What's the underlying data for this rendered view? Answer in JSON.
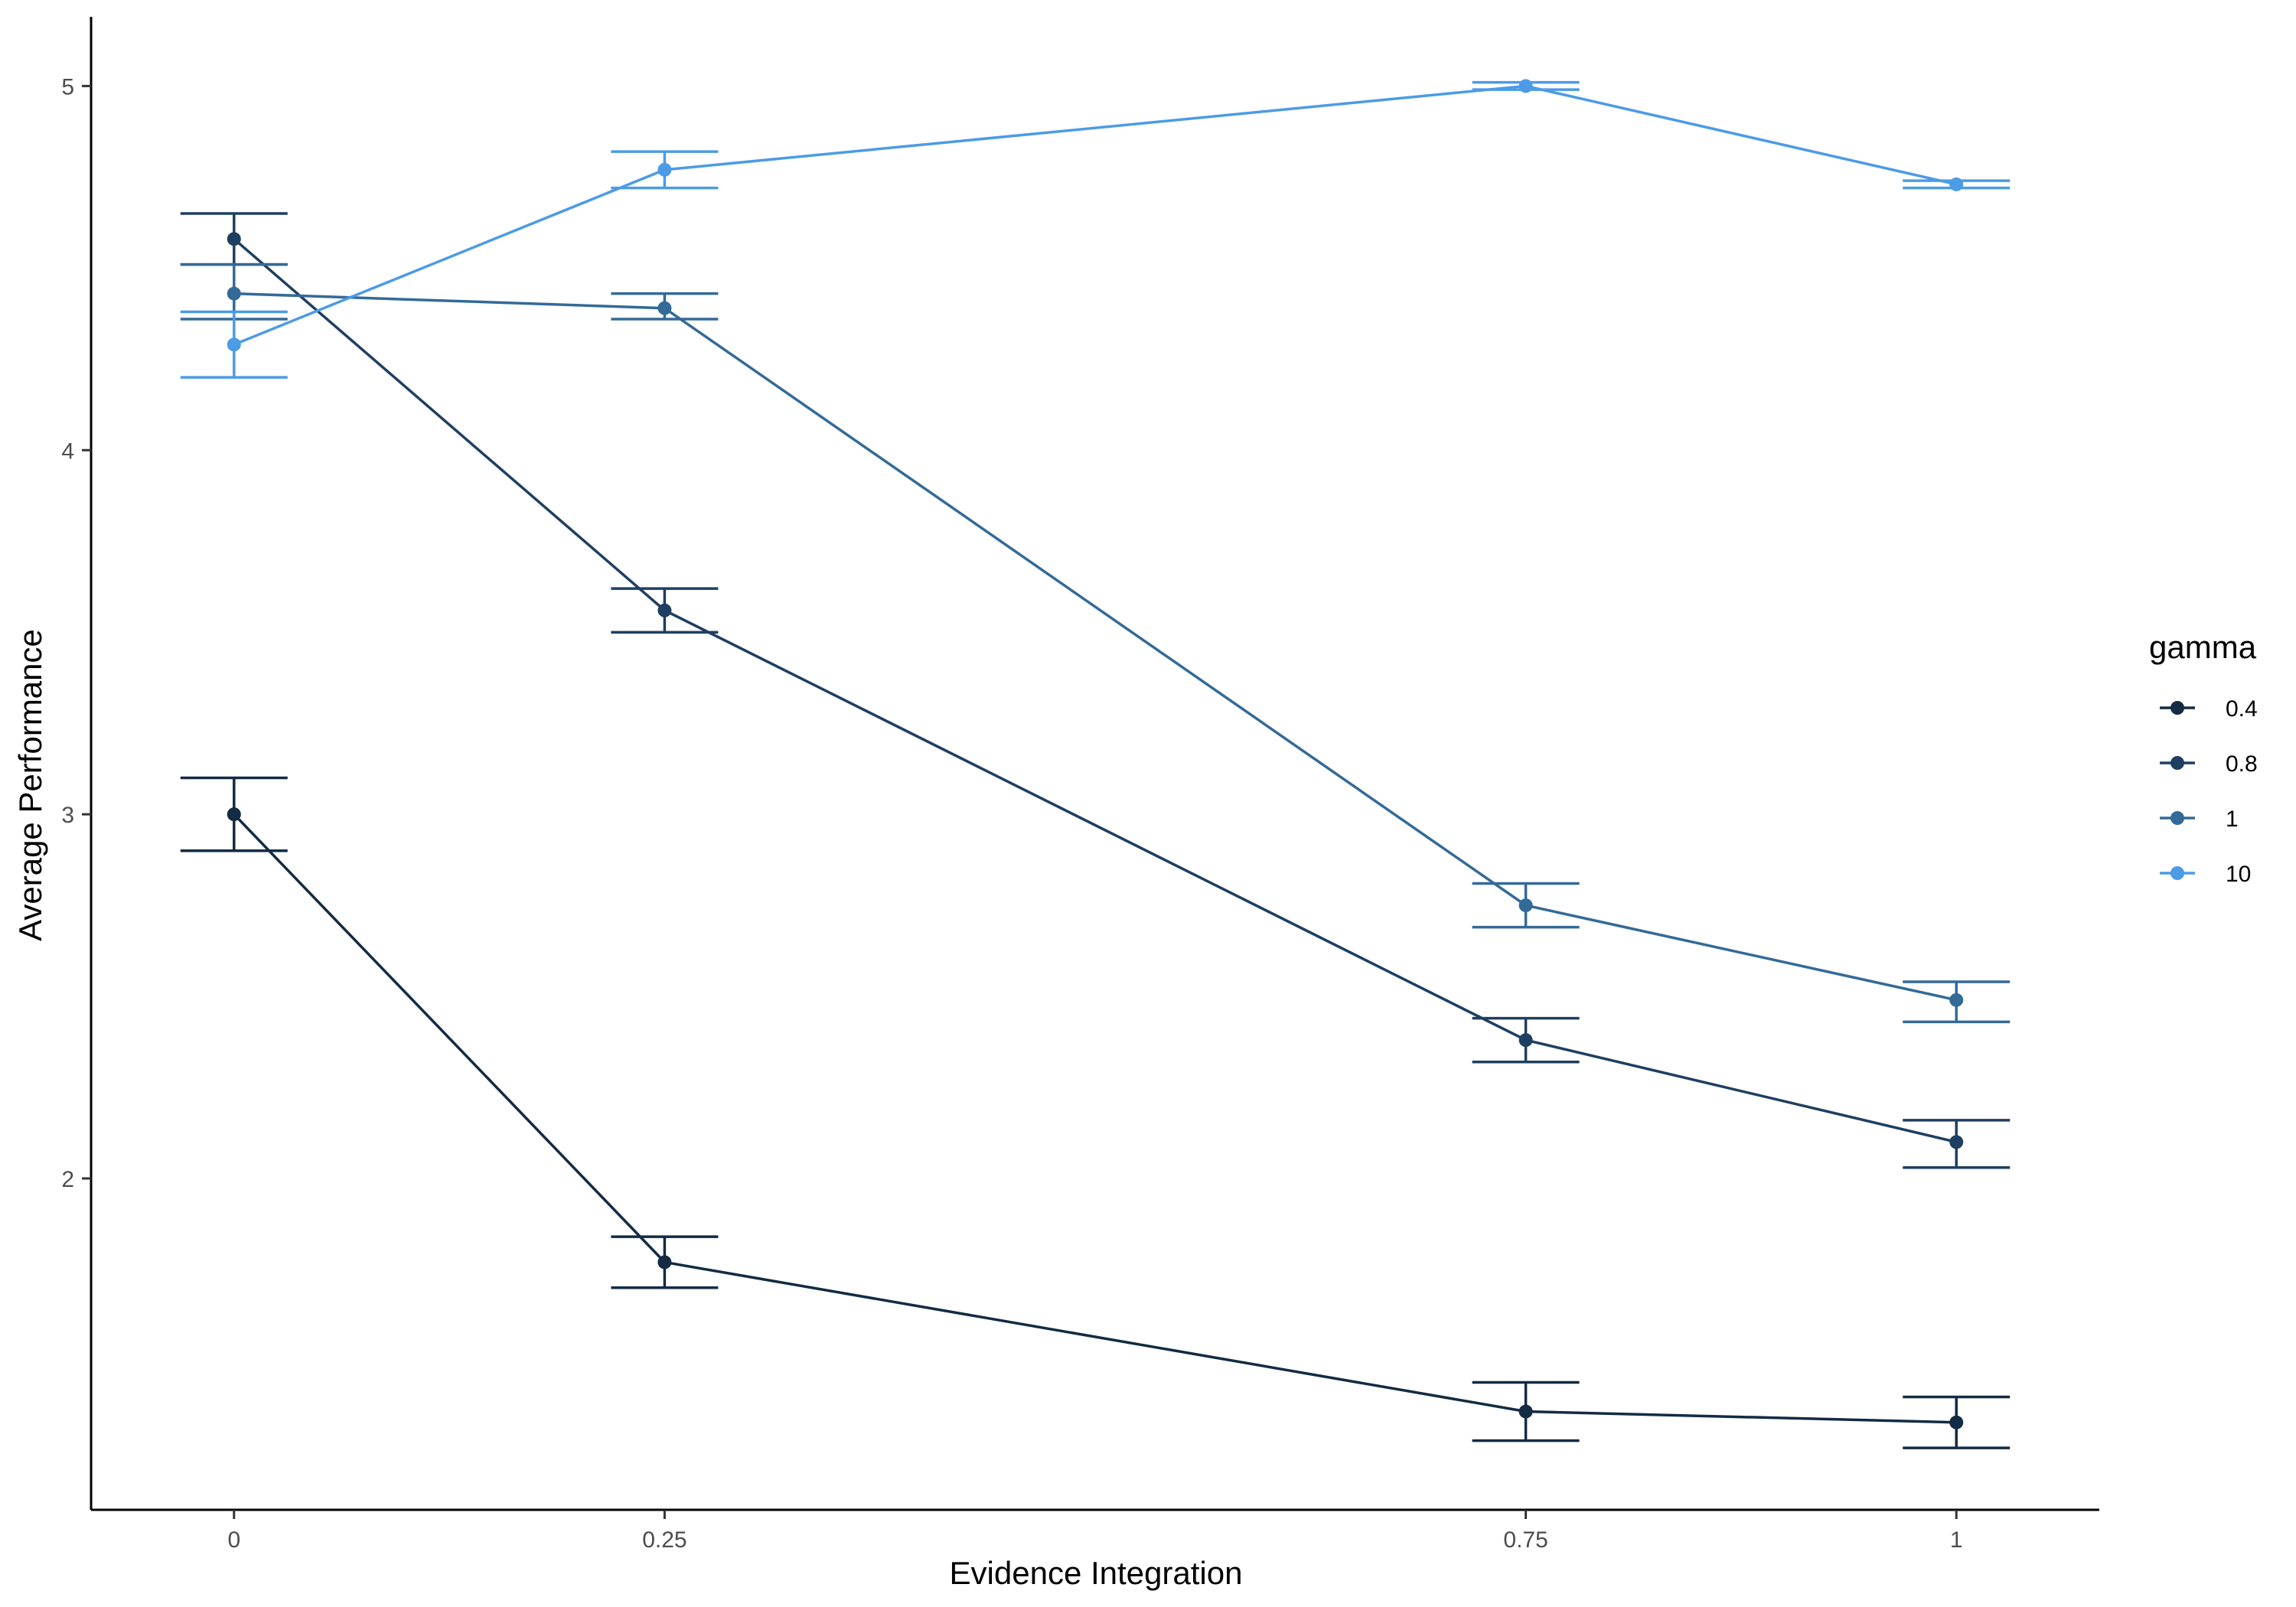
{
  "chart_data": {
    "type": "line",
    "xlabel": "Evidence Integration",
    "ylabel": "Average Performance",
    "xlim": [
      -0.083,
      1.083
    ],
    "ylim": [
      1.09,
      5.19
    ],
    "x_ticks": [
      0,
      0.25,
      0.75,
      1
    ],
    "x_tick_labels": [
      "0",
      "0.25",
      "0.75",
      "1"
    ],
    "y_ticks": [
      2,
      3,
      4,
      5
    ],
    "y_tick_labels": [
      "2",
      "3",
      "4",
      "5"
    ],
    "grid": false,
    "legend": {
      "title": "gamma",
      "position": "right"
    },
    "error_bars": true,
    "series": [
      {
        "name": "0.4",
        "color": "#132B43",
        "x": [
          0,
          0.25,
          0.75,
          1
        ],
        "values": [
          3.0,
          1.77,
          1.36,
          1.33
        ],
        "err_low": [
          2.9,
          1.7,
          1.28,
          1.26
        ],
        "err_high": [
          3.1,
          1.84,
          1.44,
          1.4
        ]
      },
      {
        "name": "0.8",
        "color": "#1F3F62",
        "x": [
          0,
          0.25,
          0.75,
          1
        ],
        "values": [
          4.58,
          3.56,
          2.38,
          2.1
        ],
        "err_low": [
          4.51,
          3.5,
          2.32,
          2.03
        ],
        "err_high": [
          4.65,
          3.62,
          2.44,
          2.16
        ]
      },
      {
        "name": "1",
        "color": "#336A98",
        "x": [
          0,
          0.25,
          0.75,
          1
        ],
        "values": [
          4.43,
          4.39,
          2.75,
          2.49
        ],
        "err_low": [
          4.36,
          4.36,
          2.69,
          2.43
        ],
        "err_high": [
          4.51,
          4.43,
          2.81,
          2.54
        ]
      },
      {
        "name": "10",
        "color": "#4C9BE6",
        "x": [
          0,
          0.25,
          0.75,
          1
        ],
        "values": [
          4.29,
          4.77,
          5.0,
          4.73
        ],
        "err_low": [
          4.2,
          4.72,
          4.99,
          4.72
        ],
        "err_high": [
          4.38,
          4.82,
          5.01,
          4.74
        ]
      }
    ]
  }
}
